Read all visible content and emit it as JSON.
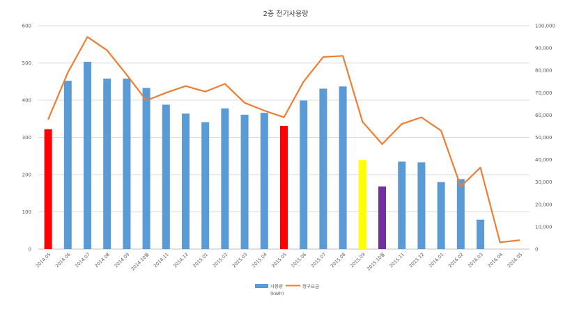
{
  "chart_data": {
    "type": "bar+line",
    "title": "2층 전기사용량",
    "categories": [
      "2014.05",
      "2014.06",
      "2014.07",
      "2014.08",
      "2014.09",
      "2014.10월",
      "2014.11",
      "2014.12",
      "2015.01",
      "2015.02",
      "2015.03",
      "2015.04",
      "2015.05",
      "2015.06",
      "2015.07",
      "2015.08",
      "2015.09",
      "2015.10월",
      "2015.11",
      "2015.12",
      "2016.01",
      "2016.02",
      "2016.03",
      "2016.04",
      "2016.05"
    ],
    "series": [
      {
        "name": "사용량",
        "name_sub": "(kWh)",
        "type": "bar",
        "axis": "left",
        "color": "#5B9BD5",
        "values": [
          322,
          452,
          503,
          458,
          458,
          433,
          388,
          364,
          341,
          378,
          361,
          366,
          331,
          399,
          431,
          437,
          239,
          168,
          235,
          233,
          180,
          188,
          79,
          0,
          0
        ],
        "highlight_colors": {
          "0": "#FF0000",
          "12": "#FF0000",
          "16": "#FFFF00",
          "17": "#7030A0"
        }
      },
      {
        "name": "청구요금",
        "type": "line",
        "axis": "right",
        "color": "#ED7D31",
        "values": [
          58000,
          79000,
          95000,
          89000,
          78000,
          66500,
          70000,
          73000,
          70500,
          74000,
          65500,
          62000,
          59000,
          75000,
          86000,
          86500,
          57000,
          47000,
          56000,
          59000,
          53000,
          28000,
          36500,
          3000,
          4000
        ]
      }
    ],
    "y_left": {
      "min": 0,
      "max": 600,
      "ticks": [
        "0",
        "100",
        "200",
        "300",
        "400",
        "500",
        "600"
      ]
    },
    "y_right": {
      "min": 0,
      "max": 100000,
      "ticks": [
        "0",
        "10,000",
        "20,000",
        "30,000",
        "40,000",
        "50,000",
        "60,000",
        "70,000",
        "80,000",
        "90,000",
        "100,000"
      ]
    },
    "grid": true,
    "legend_position": "bottom"
  }
}
